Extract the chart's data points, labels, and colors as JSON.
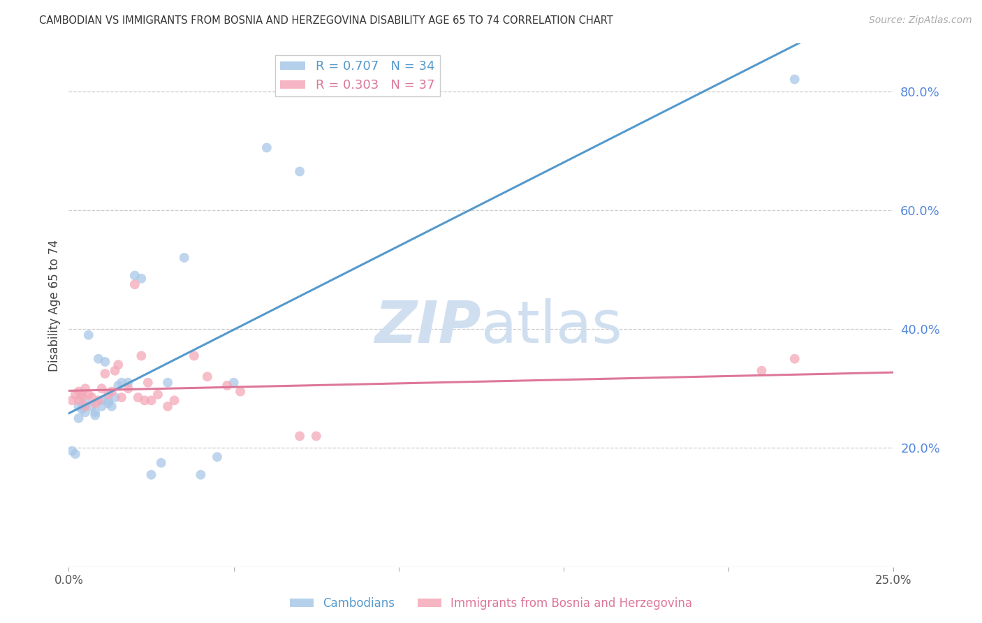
{
  "title": "CAMBODIAN VS IMMIGRANTS FROM BOSNIA AND HERZEGOVINA DISABILITY AGE 65 TO 74 CORRELATION CHART",
  "source": "Source: ZipAtlas.com",
  "ylabel": "Disability Age 65 to 74",
  "right_yticks": [
    "20.0%",
    "40.0%",
    "60.0%",
    "80.0%"
  ],
  "right_ytick_vals": [
    0.2,
    0.4,
    0.6,
    0.8
  ],
  "legend_1_label": "R = 0.707   N = 34",
  "legend_2_label": "R = 0.303   N = 37",
  "legend_1_color": "#a8c8e8",
  "legend_2_color": "#f4a8b8",
  "line_1_color": "#5599cc",
  "line_2_color": "#dd7799",
  "watermark_color": "#d0dff0",
  "cambodian_x": [
    0.001,
    0.002,
    0.003,
    0.003,
    0.004,
    0.005,
    0.005,
    0.006,
    0.007,
    0.008,
    0.008,
    0.009,
    0.01,
    0.01,
    0.011,
    0.012,
    0.012,
    0.013,
    0.014,
    0.015,
    0.016,
    0.018,
    0.02,
    0.022,
    0.025,
    0.028,
    0.03,
    0.035,
    0.04,
    0.045,
    0.05,
    0.06,
    0.07,
    0.22
  ],
  "cambodian_y": [
    0.195,
    0.19,
    0.27,
    0.25,
    0.265,
    0.275,
    0.26,
    0.39,
    0.27,
    0.26,
    0.255,
    0.35,
    0.27,
    0.28,
    0.345,
    0.275,
    0.28,
    0.27,
    0.285,
    0.305,
    0.31,
    0.31,
    0.49,
    0.485,
    0.155,
    0.175,
    0.31,
    0.52,
    0.155,
    0.185,
    0.31,
    0.705,
    0.665,
    0.82
  ],
  "bosnia_x": [
    0.001,
    0.002,
    0.003,
    0.003,
    0.004,
    0.004,
    0.005,
    0.005,
    0.006,
    0.007,
    0.008,
    0.009,
    0.01,
    0.011,
    0.012,
    0.013,
    0.014,
    0.015,
    0.016,
    0.018,
    0.02,
    0.021,
    0.022,
    0.023,
    0.024,
    0.025,
    0.027,
    0.03,
    0.032,
    0.038,
    0.042,
    0.048,
    0.052,
    0.07,
    0.075,
    0.22,
    0.21
  ],
  "bosnia_y": [
    0.28,
    0.29,
    0.28,
    0.295,
    0.285,
    0.29,
    0.27,
    0.3,
    0.29,
    0.285,
    0.275,
    0.28,
    0.3,
    0.325,
    0.29,
    0.295,
    0.33,
    0.34,
    0.285,
    0.3,
    0.475,
    0.285,
    0.355,
    0.28,
    0.31,
    0.28,
    0.29,
    0.27,
    0.28,
    0.355,
    0.32,
    0.305,
    0.295,
    0.22,
    0.22,
    0.35,
    0.33
  ],
  "xlim": [
    0.0,
    0.25
  ],
  "ylim": [
    0.0,
    0.88
  ],
  "xtick_vals": [
    0.0,
    0.05,
    0.1,
    0.15,
    0.2,
    0.25
  ],
  "xtick_labels_show": [
    "0.0%",
    "",
    "",
    "",
    "",
    "25.0%"
  ]
}
